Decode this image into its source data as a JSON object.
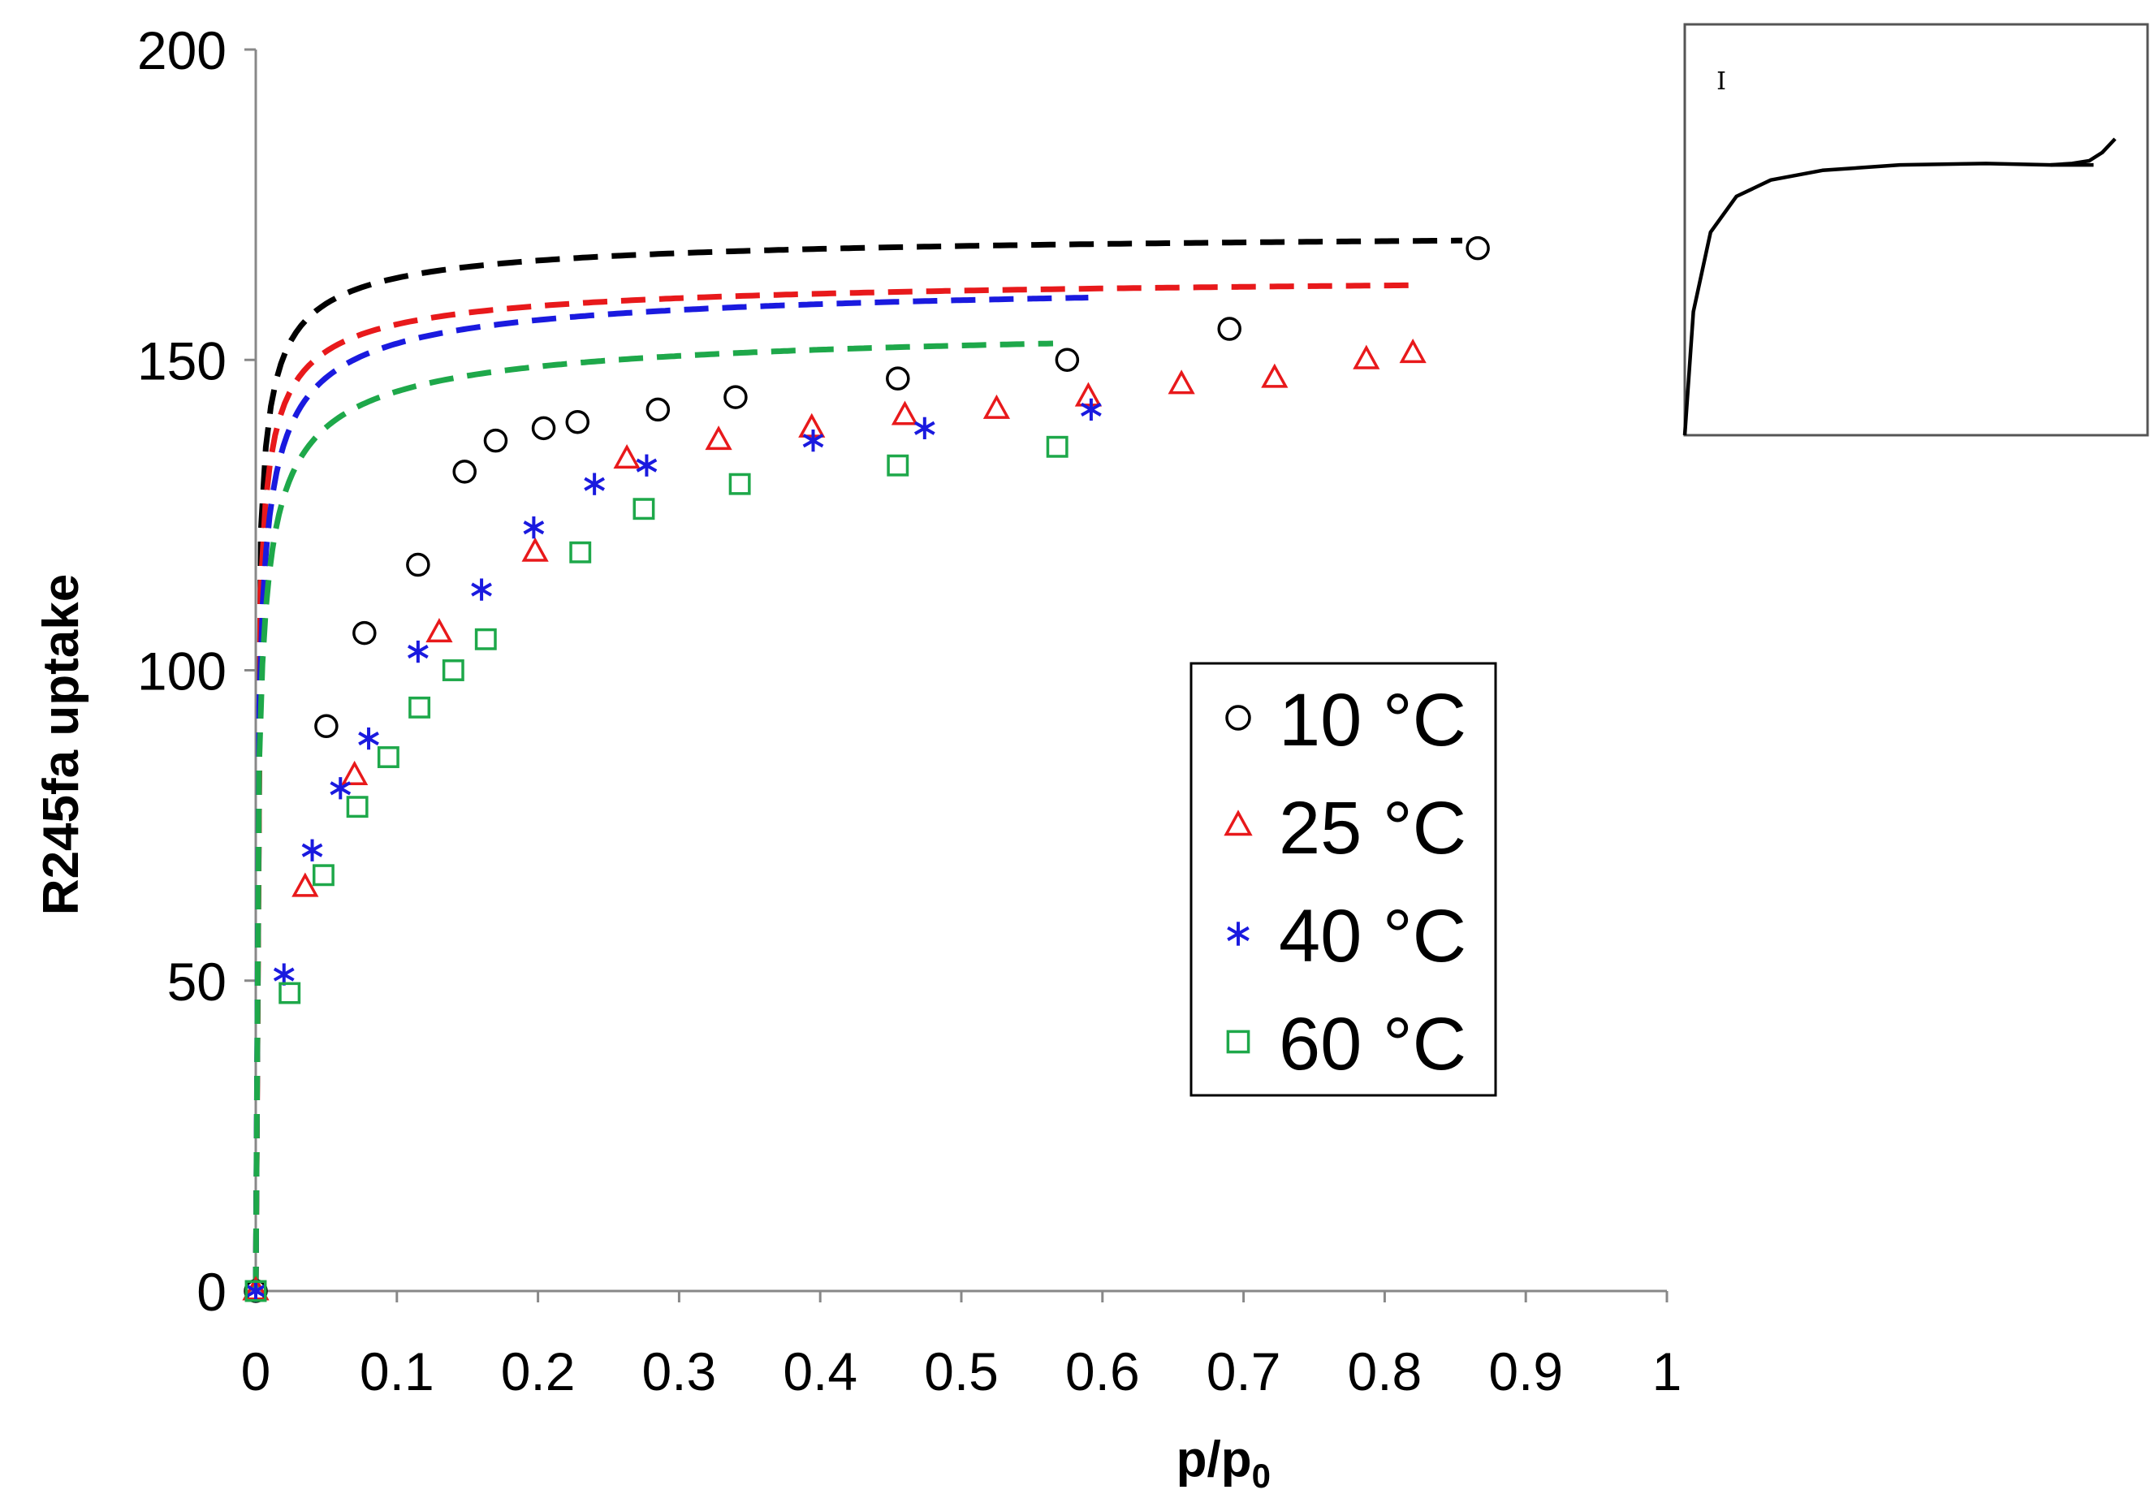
{
  "chart_data": [
    {
      "type": "scatter",
      "title": "",
      "xlabel": "p/p",
      "xlabel_subscript": "0",
      "ylabel": "R245fa uptake",
      "xlim": [
        0,
        1
      ],
      "ylim": [
        0,
        200
      ],
      "x_ticks": [
        "0",
        "0.1",
        "0.2",
        "0.3",
        "0.4",
        "0.5",
        "0.6",
        "0.7",
        "0.8",
        "0.9",
        "1"
      ],
      "y_ticks": [
        "0",
        "50",
        "100",
        "150",
        "200"
      ],
      "grid": false,
      "legend_position": "center-right",
      "series": [
        {
          "name": "10 °C",
          "color": "#000000",
          "marker": "circle",
          "points": [
            [
              0,
              0
            ],
            [
              0.05,
              91
            ],
            [
              0.077,
              106
            ],
            [
              0.115,
              117
            ],
            [
              0.148,
              132
            ],
            [
              0.17,
              137
            ],
            [
              0.204,
              139
            ],
            [
              0.228,
              140
            ],
            [
              0.285,
              142
            ],
            [
              0.34,
              144
            ],
            [
              0.455,
              147
            ],
            [
              0.575,
              150
            ],
            [
              0.69,
              155
            ],
            [
              0.866,
              168
            ]
          ],
          "fit": {
            "qmax": 171.5,
            "b": 82,
            "n": 0.62,
            "x_end": 0.855
          }
        },
        {
          "name": "25 °C",
          "color": "#e8191b",
          "marker": "triangle",
          "points": [
            [
              0,
              0
            ],
            [
              0.035,
              65
            ],
            [
              0.07,
              83
            ],
            [
              0.13,
              106
            ],
            [
              0.198,
              119
            ],
            [
              0.263,
              134
            ],
            [
              0.328,
              137
            ],
            [
              0.394,
              139
            ],
            [
              0.46,
              141
            ],
            [
              0.525,
              142
            ],
            [
              0.59,
              144
            ],
            [
              0.656,
              146
            ],
            [
              0.722,
              147
            ],
            [
              0.787,
              150
            ],
            [
              0.82,
              151
            ]
          ],
          "fit": {
            "qmax": 164.5,
            "b": 74,
            "n": 0.62,
            "x_end": 0.82
          }
        },
        {
          "name": "40 °C",
          "color": "#1a1adf",
          "marker": "asterisk",
          "points": [
            [
              0,
              0
            ],
            [
              0.02,
              51
            ],
            [
              0.04,
              71
            ],
            [
              0.06,
              81
            ],
            [
              0.08,
              89
            ],
            [
              0.115,
              103
            ],
            [
              0.16,
              113
            ],
            [
              0.197,
              123
            ],
            [
              0.24,
              130
            ],
            [
              0.277,
              133
            ],
            [
              0.395,
              137
            ],
            [
              0.474,
              139
            ],
            [
              0.592,
              142
            ]
          ],
          "fit": {
            "qmax": 164,
            "b": 56,
            "n": 0.62,
            "x_end": 0.59
          }
        },
        {
          "name": "60 °C",
          "color": "#1ea84a",
          "marker": "square",
          "points": [
            [
              0,
              0
            ],
            [
              0.024,
              48
            ],
            [
              0.048,
              67
            ],
            [
              0.072,
              78
            ],
            [
              0.094,
              86
            ],
            [
              0.116,
              94
            ],
            [
              0.14,
              100
            ],
            [
              0.163,
              105
            ],
            [
              0.23,
              119
            ],
            [
              0.275,
              126
            ],
            [
              0.343,
              130
            ],
            [
              0.455,
              133
            ],
            [
              0.568,
              136
            ]
          ],
          "fit": {
            "qmax": 157,
            "b": 50,
            "n": 0.62,
            "x_end": 0.565
          }
        }
      ]
    },
    {
      "type": "line",
      "description_label": "I",
      "axis_ticks_shown": false,
      "series": [
        {
          "name": "main",
          "color": "#000000",
          "x": [
            0,
            0.02,
            0.06,
            0.12,
            0.2,
            0.32,
            0.5,
            0.7,
            0.85,
            0.95
          ],
          "y": [
            0,
            0.45,
            0.74,
            0.87,
            0.93,
            0.965,
            0.985,
            0.99,
            0.985,
            0.985
          ]
        },
        {
          "name": "upturn",
          "color": "#000000",
          "x": [
            0.85,
            0.9,
            0.94,
            0.97,
            1.0
          ],
          "y": [
            0.985,
            0.99,
            1.0,
            1.03,
            1.08
          ]
        }
      ]
    }
  ]
}
